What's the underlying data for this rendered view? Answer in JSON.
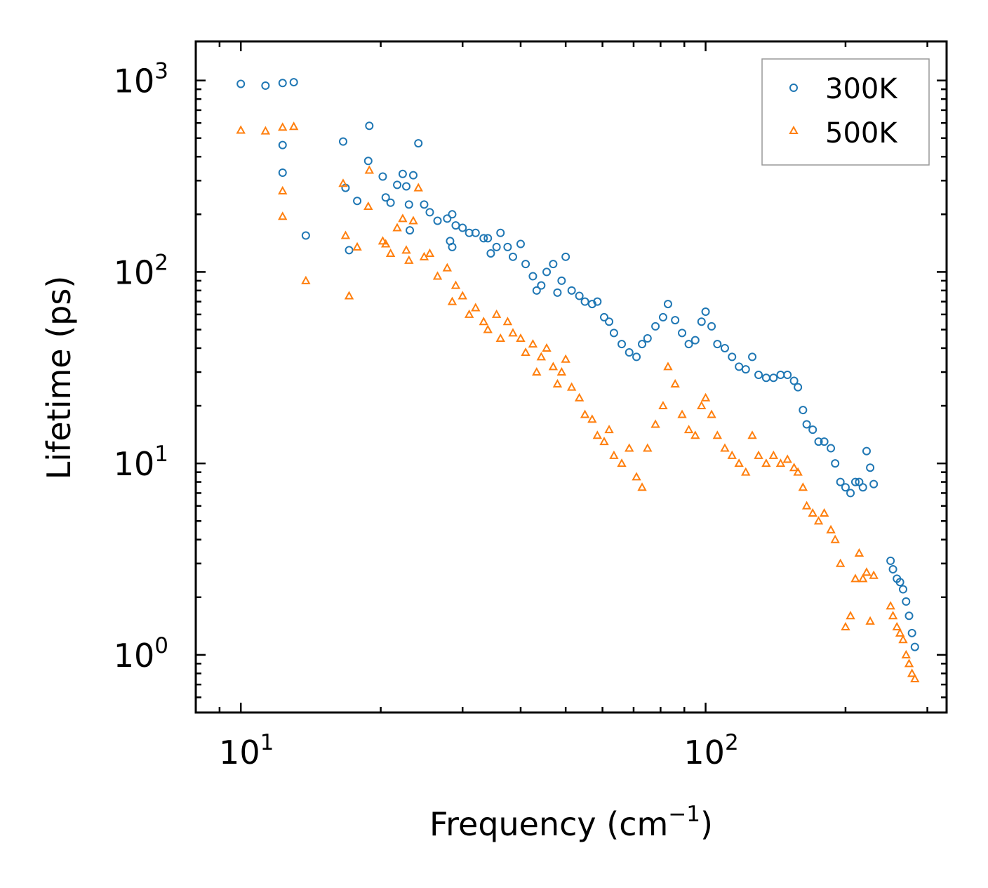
{
  "chart_data": {
    "type": "scatter",
    "title": "",
    "xlabel": "Frequency (cm",
    "xlabel_sup": "−1",
    "xlabel_close": ")",
    "ylabel": "Lifetime (ps)",
    "xscale": "log",
    "yscale": "log",
    "xlim": [
      8.0,
      330.0
    ],
    "ylim": [
      0.5,
      1600.0
    ],
    "x_ticks": [
      {
        "value": 10,
        "base": "10",
        "exp": "1"
      },
      {
        "value": 100,
        "base": "10",
        "exp": "2"
      }
    ],
    "y_ticks": [
      {
        "value": 1,
        "base": "10",
        "exp": "0"
      },
      {
        "value": 10,
        "base": "10",
        "exp": "1"
      },
      {
        "value": 100,
        "base": "10",
        "exp": "2"
      },
      {
        "value": 1000,
        "base": "10",
        "exp": "3"
      }
    ],
    "legend_position": "top-right",
    "series": [
      {
        "name": "300K",
        "marker": "circle",
        "color": "#1f77b4",
        "points": [
          [
            10.0,
            960
          ],
          [
            11.3,
            940
          ],
          [
            12.3,
            970
          ],
          [
            13.0,
            980
          ],
          [
            12.3,
            460
          ],
          [
            12.3,
            330
          ],
          [
            13.8,
            155
          ],
          [
            16.6,
            480
          ],
          [
            16.8,
            275
          ],
          [
            17.1,
            130
          ],
          [
            17.8,
            235
          ],
          [
            18.8,
            380
          ],
          [
            18.9,
            580
          ],
          [
            20.2,
            315
          ],
          [
            20.5,
            245
          ],
          [
            21.0,
            230
          ],
          [
            21.7,
            285
          ],
          [
            22.3,
            325
          ],
          [
            22.7,
            280
          ],
          [
            23.0,
            225
          ],
          [
            23.5,
            320
          ],
          [
            24.1,
            470
          ],
          [
            23.1,
            165
          ],
          [
            24.8,
            225
          ],
          [
            25.5,
            205
          ],
          [
            26.5,
            185
          ],
          [
            27.8,
            190
          ],
          [
            28.5,
            200
          ],
          [
            29.0,
            175
          ],
          [
            30.0,
            170
          ],
          [
            28.2,
            145
          ],
          [
            28.5,
            135
          ],
          [
            31.0,
            160
          ],
          [
            32.0,
            160
          ],
          [
            33.3,
            150
          ],
          [
            34.0,
            150
          ],
          [
            34.5,
            125
          ],
          [
            35.5,
            135
          ],
          [
            36.2,
            160
          ],
          [
            37.5,
            135
          ],
          [
            38.5,
            120
          ],
          [
            40.0,
            140
          ],
          [
            41.0,
            110
          ],
          [
            42.5,
            95
          ],
          [
            43.3,
            80
          ],
          [
            44.3,
            85
          ],
          [
            45.5,
            100
          ],
          [
            47.0,
            110
          ],
          [
            48.0,
            78
          ],
          [
            49.0,
            90
          ],
          [
            50.0,
            120
          ],
          [
            51.5,
            80
          ],
          [
            53.5,
            75
          ],
          [
            55.0,
            70
          ],
          [
            57.0,
            68
          ],
          [
            58.5,
            70
          ],
          [
            60.5,
            58
          ],
          [
            62.0,
            55
          ],
          [
            63.5,
            48
          ],
          [
            66.0,
            42
          ],
          [
            68.5,
            38
          ],
          [
            71.0,
            36
          ],
          [
            73.0,
            42
          ],
          [
            75.0,
            45
          ],
          [
            78.0,
            52
          ],
          [
            81.0,
            58
          ],
          [
            83.0,
            68
          ],
          [
            86.0,
            56
          ],
          [
            89.0,
            48
          ],
          [
            92.0,
            42
          ],
          [
            95.0,
            44
          ],
          [
            98.0,
            55
          ],
          [
            100.0,
            62
          ],
          [
            103.0,
            52
          ],
          [
            106.0,
            42
          ],
          [
            110.0,
            40
          ],
          [
            114.0,
            36
          ],
          [
            118.0,
            32
          ],
          [
            122.0,
            31
          ],
          [
            126.0,
            36
          ],
          [
            130.0,
            29
          ],
          [
            135.0,
            28
          ],
          [
            140.0,
            28
          ],
          [
            145.0,
            29
          ],
          [
            150.0,
            29
          ],
          [
            155.0,
            27
          ],
          [
            158.0,
            25
          ],
          [
            162.0,
            19
          ],
          [
            165.0,
            16
          ],
          [
            170.0,
            15
          ],
          [
            175.0,
            13
          ],
          [
            180.0,
            13
          ],
          [
            186.0,
            12
          ],
          [
            190.0,
            10
          ],
          [
            195.0,
            8
          ],
          [
            200.0,
            7.5
          ],
          [
            205.0,
            7
          ],
          [
            210.0,
            8
          ],
          [
            214.0,
            8
          ],
          [
            218.0,
            7.5
          ],
          [
            222.0,
            11.6
          ],
          [
            226.0,
            9.5
          ],
          [
            230.0,
            7.8
          ],
          [
            250.0,
            3.1
          ],
          [
            253.0,
            2.8
          ],
          [
            258.0,
            2.5
          ],
          [
            262.0,
            2.4
          ],
          [
            266.0,
            2.2
          ],
          [
            270.0,
            1.9
          ],
          [
            274.0,
            1.6
          ],
          [
            278.0,
            1.3
          ],
          [
            282.0,
            1.1
          ]
        ]
      },
      {
        "name": "500K",
        "marker": "triangle",
        "color": "#ff7f0e",
        "points": [
          [
            10.0,
            550
          ],
          [
            11.3,
            545
          ],
          [
            12.3,
            570
          ],
          [
            13.0,
            575
          ],
          [
            12.3,
            265
          ],
          [
            12.3,
            195
          ],
          [
            13.8,
            90
          ],
          [
            16.6,
            290
          ],
          [
            16.8,
            155
          ],
          [
            17.1,
            75
          ],
          [
            17.8,
            135
          ],
          [
            18.8,
            220
          ],
          [
            18.9,
            340
          ],
          [
            20.2,
            145
          ],
          [
            20.5,
            140
          ],
          [
            21.0,
            125
          ],
          [
            21.7,
            170
          ],
          [
            22.3,
            190
          ],
          [
            22.7,
            130
          ],
          [
            23.0,
            115
          ],
          [
            23.5,
            185
          ],
          [
            24.1,
            275
          ],
          [
            24.8,
            120
          ],
          [
            25.5,
            125
          ],
          [
            26.5,
            95
          ],
          [
            27.8,
            105
          ],
          [
            28.5,
            70
          ],
          [
            29.0,
            85
          ],
          [
            30.0,
            75
          ],
          [
            31.0,
            60
          ],
          [
            32.0,
            65
          ],
          [
            33.3,
            55
          ],
          [
            34.0,
            50
          ],
          [
            35.5,
            60
          ],
          [
            36.2,
            45
          ],
          [
            37.5,
            55
          ],
          [
            38.5,
            48
          ],
          [
            40.0,
            45
          ],
          [
            41.0,
            38
          ],
          [
            42.5,
            42
          ],
          [
            43.3,
            30
          ],
          [
            44.3,
            36
          ],
          [
            45.5,
            40
          ],
          [
            47.0,
            32
          ],
          [
            48.0,
            26
          ],
          [
            49.0,
            30
          ],
          [
            50.0,
            35
          ],
          [
            51.5,
            25
          ],
          [
            53.5,
            22
          ],
          [
            55.0,
            18
          ],
          [
            57.0,
            17
          ],
          [
            58.5,
            14
          ],
          [
            60.5,
            13
          ],
          [
            62.0,
            15
          ],
          [
            63.5,
            11
          ],
          [
            66.0,
            10
          ],
          [
            68.5,
            12
          ],
          [
            71.0,
            8.5
          ],
          [
            73.0,
            7.5
          ],
          [
            75.0,
            12
          ],
          [
            78.0,
            16
          ],
          [
            81.0,
            20
          ],
          [
            83.0,
            32
          ],
          [
            86.0,
            26
          ],
          [
            89.0,
            18
          ],
          [
            92.0,
            15
          ],
          [
            95.0,
            14
          ],
          [
            98.0,
            20
          ],
          [
            100.0,
            22
          ],
          [
            103.0,
            18
          ],
          [
            106.0,
            14
          ],
          [
            110.0,
            12
          ],
          [
            114.0,
            11
          ],
          [
            118.0,
            10
          ],
          [
            122.0,
            9
          ],
          [
            126.0,
            14
          ],
          [
            130.0,
            11
          ],
          [
            135.0,
            10
          ],
          [
            140.0,
            11
          ],
          [
            145.0,
            10
          ],
          [
            150.0,
            10.5
          ],
          [
            155.0,
            9.5
          ],
          [
            158.0,
            9
          ],
          [
            162.0,
            7.5
          ],
          [
            165.0,
            6
          ],
          [
            170.0,
            5.5
          ],
          [
            175.0,
            5
          ],
          [
            180.0,
            5.5
          ],
          [
            186.0,
            4.5
          ],
          [
            190.0,
            4
          ],
          [
            195.0,
            3
          ],
          [
            200.0,
            1.4
          ],
          [
            205.0,
            1.6
          ],
          [
            210.0,
            2.5
          ],
          [
            214.0,
            3.4
          ],
          [
            218.0,
            2.5
          ],
          [
            222.0,
            2.7
          ],
          [
            226.0,
            1.5
          ],
          [
            230.0,
            2.6
          ],
          [
            250.0,
            1.8
          ],
          [
            253.0,
            1.6
          ],
          [
            258.0,
            1.4
          ],
          [
            262.0,
            1.3
          ],
          [
            266.0,
            1.2
          ],
          [
            270.0,
            1.0
          ],
          [
            274.0,
            0.9
          ],
          [
            278.0,
            0.8
          ],
          [
            282.0,
            0.75
          ]
        ]
      }
    ]
  }
}
